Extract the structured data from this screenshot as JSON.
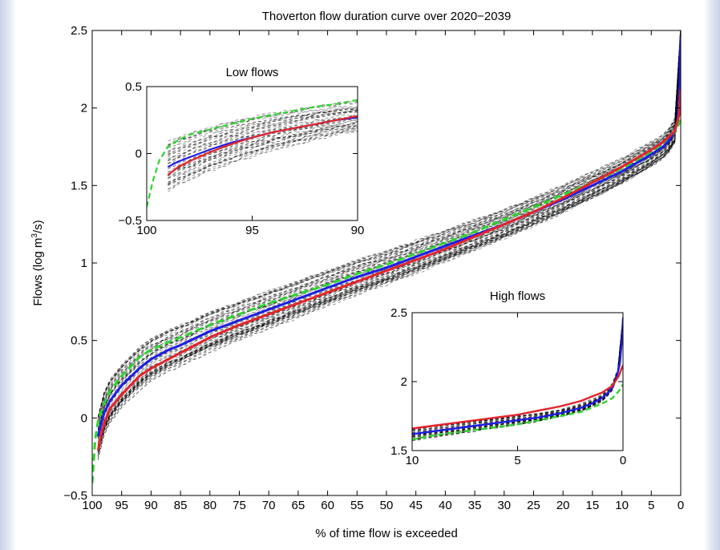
{
  "chart_data": [
    {
      "type": "line",
      "title": "Thoverton flow duration curve over 2020−2039",
      "xlabel": "% of time flow is exceeded",
      "ylabel_main": "Flows (log m",
      "ylabel_sup": "3",
      "ylabel_end": "/s)",
      "xlim": [
        100,
        0
      ],
      "ylim": [
        -0.5,
        2.5
      ],
      "xticks": [
        100,
        95,
        90,
        85,
        80,
        75,
        70,
        65,
        60,
        55,
        50,
        45,
        40,
        35,
        30,
        25,
        20,
        15,
        10,
        5,
        0
      ],
      "yticks": [
        -0.5,
        0,
        0.5,
        1,
        1.5,
        2,
        2.5
      ],
      "ytick_labels": [
        "−0.5",
        "0",
        "0.5",
        "1",
        "1.5",
        "2",
        "2.5"
      ],
      "ensemble_color": "#000000",
      "series": [
        {
          "color": "#2bd62b",
          "dash": true,
          "x": [
            100,
            99.5,
            99,
            98,
            97,
            95,
            92,
            90,
            87,
            85,
            80,
            75,
            70,
            65,
            60,
            55,
            50,
            45,
            40,
            35,
            30,
            25,
            20,
            15,
            10,
            5,
            3,
            1,
            0.3,
            0
          ],
          "y": [
            -0.42,
            -0.14,
            -0.02,
            0.09,
            0.17,
            0.27,
            0.39,
            0.44,
            0.49,
            0.52,
            0.6,
            0.67,
            0.74,
            0.8,
            0.86,
            0.93,
            0.99,
            1.06,
            1.13,
            1.2,
            1.28,
            1.36,
            1.44,
            1.52,
            1.61,
            1.71,
            1.76,
            1.84,
            1.9,
            1.97
          ]
        },
        {
          "color": "#1e1ee6",
          "dash": false,
          "x": [
            99,
            98.5,
            98,
            97,
            95,
            92,
            90,
            87,
            85,
            80,
            75,
            70,
            65,
            60,
            55,
            50,
            45,
            40,
            35,
            30,
            25,
            20,
            15,
            10,
            5,
            3,
            2,
            1,
            0.5,
            0.2,
            0
          ],
          "y": [
            -0.12,
            -0.04,
            0.03,
            0.11,
            0.21,
            0.32,
            0.38,
            0.44,
            0.47,
            0.56,
            0.63,
            0.7,
            0.77,
            0.84,
            0.91,
            0.97,
            1.04,
            1.11,
            1.18,
            1.25,
            1.33,
            1.41,
            1.5,
            1.59,
            1.7,
            1.75,
            1.79,
            1.85,
            1.93,
            2.1,
            2.46
          ]
        },
        {
          "color": "#e3242b",
          "dash": false,
          "x": [
            99,
            98.5,
            98,
            97,
            95,
            92,
            90,
            87,
            85,
            80,
            75,
            70,
            65,
            60,
            55,
            50,
            45,
            40,
            35,
            30,
            25,
            20,
            15,
            10,
            5,
            3,
            1,
            0.3,
            0
          ],
          "y": [
            -0.21,
            -0.11,
            -0.04,
            0.06,
            0.15,
            0.27,
            0.32,
            0.38,
            0.42,
            0.52,
            0.6,
            0.67,
            0.74,
            0.81,
            0.88,
            0.95,
            1.02,
            1.09,
            1.17,
            1.25,
            1.33,
            1.42,
            1.52,
            1.62,
            1.73,
            1.78,
            1.85,
            1.95,
            2.12
          ]
        }
      ]
    },
    {
      "type": "line",
      "title": "Low flows",
      "xlim": [
        100,
        90
      ],
      "ylim": [
        -0.5,
        0.5
      ],
      "xticks": [
        100,
        95,
        90
      ],
      "yticks": [
        -0.5,
        0,
        0.5
      ],
      "ytick_labels": [
        "−0.5",
        "0",
        "0.5"
      ],
      "series": [
        {
          "color": "#2bd62b",
          "dash": true,
          "x": [
            100,
            99.7,
            99.4,
            99,
            98.5,
            98,
            97,
            96,
            95,
            94,
            93,
            92,
            91,
            90
          ],
          "y": [
            -0.4,
            -0.2,
            -0.05,
            0.05,
            0.1,
            0.14,
            0.18,
            0.22,
            0.26,
            0.29,
            0.32,
            0.35,
            0.37,
            0.4
          ]
        },
        {
          "color": "#1e1ee6",
          "dash": false,
          "x": [
            99,
            98.5,
            98,
            97,
            96,
            95,
            94,
            93,
            92,
            91,
            90
          ],
          "y": [
            -0.1,
            -0.06,
            -0.03,
            0.03,
            0.08,
            0.12,
            0.16,
            0.19,
            0.22,
            0.25,
            0.27
          ]
        },
        {
          "color": "#e3242b",
          "dash": false,
          "x": [
            99,
            98.5,
            98,
            97,
            96,
            95,
            94,
            93,
            92,
            91,
            90
          ],
          "y": [
            -0.16,
            -0.1,
            -0.06,
            0.01,
            0.07,
            0.12,
            0.16,
            0.19,
            0.22,
            0.25,
            0.28
          ]
        }
      ]
    },
    {
      "type": "line",
      "title": "High flows",
      "xlim": [
        10,
        0
      ],
      "ylim": [
        1.5,
        2.5
      ],
      "xticks": [
        10,
        5,
        0
      ],
      "yticks": [
        1.5,
        2,
        2.5
      ],
      "ytick_labels": [
        "1.5",
        "2",
        "2.5"
      ],
      "series": [
        {
          "color": "#2bd62b",
          "dash": true,
          "x": [
            10,
            9,
            8,
            7,
            6,
            5,
            4,
            3,
            2,
            1.5,
            1,
            0.5,
            0.2,
            0
          ],
          "y": [
            1.58,
            1.61,
            1.63,
            1.65,
            1.67,
            1.69,
            1.72,
            1.75,
            1.78,
            1.81,
            1.84,
            1.88,
            1.93,
            1.98
          ]
        },
        {
          "color": "#1e1ee6",
          "dash": false,
          "x": [
            10,
            9,
            8,
            7,
            6,
            5,
            4,
            3,
            2,
            1.5,
            1,
            0.7,
            0.5,
            0.3,
            0.15,
            0.05,
            0
          ],
          "y": [
            1.62,
            1.64,
            1.66,
            1.68,
            1.7,
            1.72,
            1.74,
            1.77,
            1.81,
            1.84,
            1.88,
            1.92,
            1.96,
            2.03,
            2.13,
            2.3,
            2.46
          ]
        },
        {
          "color": "#e3242b",
          "dash": false,
          "x": [
            10,
            9,
            8,
            7,
            6,
            5,
            4,
            3,
            2,
            1.5,
            1,
            0.5,
            0.2,
            0
          ],
          "y": [
            1.66,
            1.68,
            1.7,
            1.72,
            1.74,
            1.76,
            1.79,
            1.82,
            1.86,
            1.89,
            1.92,
            1.97,
            2.04,
            2.12
          ]
        }
      ]
    }
  ]
}
